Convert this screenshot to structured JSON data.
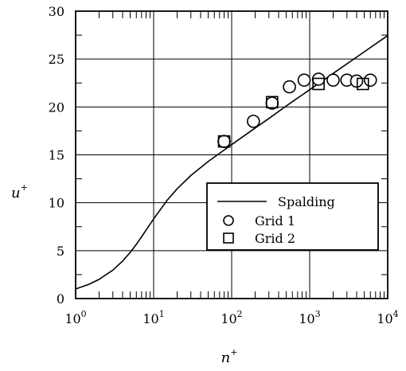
{
  "chart_data": {
    "type": "scatter",
    "title": "",
    "xlabel": "n",
    "xlabel_sup": "+",
    "ylabel": "u",
    "ylabel_sup": "+",
    "xscale": "log",
    "xlim": [
      1,
      10000
    ],
    "ylim": [
      0,
      30
    ],
    "grid": true,
    "legend_position": "lower-right",
    "x_ticks": [
      {
        "value": 1,
        "base": "10",
        "exp": "0"
      },
      {
        "value": 10,
        "base": "10",
        "exp": "1"
      },
      {
        "value": 100,
        "base": "10",
        "exp": "2"
      },
      {
        "value": 1000,
        "base": "10",
        "exp": "3"
      },
      {
        "value": 10000,
        "base": "10",
        "exp": "4"
      }
    ],
    "y_ticks": [
      "0",
      "5",
      "10",
      "15",
      "20",
      "25",
      "30"
    ],
    "series": [
      {
        "name": "Spalding",
        "kind": "line",
        "x": [
          1,
          1.5,
          2,
          3,
          4,
          5,
          6,
          7,
          8,
          10,
          15,
          20,
          30,
          50,
          80,
          100,
          200,
          300,
          500,
          1000,
          2000,
          5000,
          10000
        ],
        "y": [
          1.0,
          1.5,
          2.0,
          2.97,
          3.91,
          4.81,
          5.66,
          6.44,
          7.14,
          8.32,
          10.3,
          11.45,
          12.85,
          14.3,
          15.5,
          16.06,
          17.8,
          18.8,
          20.1,
          21.8,
          23.5,
          25.75,
          27.45
        ]
      },
      {
        "name": "Grid 1",
        "kind": "circle",
        "x": [
          80,
          190,
          330,
          550,
          850,
          1300,
          2000,
          3000,
          4000,
          6000
        ],
        "y": [
          16.4,
          18.5,
          20.4,
          22.1,
          22.8,
          22.9,
          22.8,
          22.8,
          22.7,
          22.8
        ]
      },
      {
        "name": "Grid 2",
        "kind": "square",
        "x": [
          80,
          330,
          1300,
          4800
        ],
        "y": [
          16.4,
          20.5,
          22.4,
          22.4
        ]
      }
    ]
  }
}
